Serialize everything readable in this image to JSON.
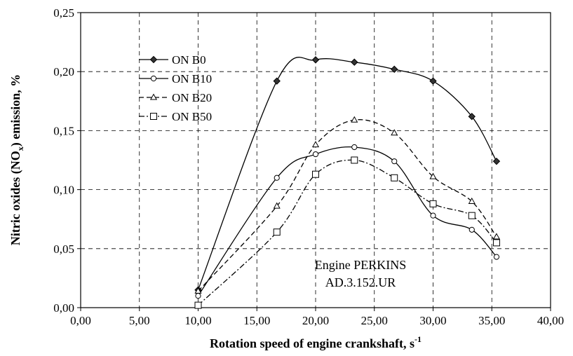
{
  "chart_data": {
    "type": "line",
    "title": "",
    "xlabel": "Rotation speed of engine crankshaft, s",
    "xlabel_sup": "-1",
    "ylabel_pre": "Nitric oxides (NO",
    "ylabel_sub": "x",
    "ylabel_post": ") emission, %",
    "xlim": [
      0,
      40
    ],
    "ylim": [
      0,
      0.25
    ],
    "xticks": [
      0,
      5,
      10,
      15,
      20,
      25,
      30,
      35,
      40
    ],
    "yticks": [
      0,
      0.05,
      0.1,
      0.15,
      0.2,
      0.25
    ],
    "xtick_labels": [
      "0,00",
      "5,00",
      "10,00",
      "15,00",
      "20,00",
      "25,00",
      "30,00",
      "35,00",
      "40,00"
    ],
    "ytick_labels": [
      "0,00",
      "0,05",
      "0,10",
      "0,15",
      "0,20",
      "0,25"
    ],
    "grid": true,
    "legend_position": "upper-left",
    "series": [
      {
        "name": "ON B0",
        "marker": "diamond",
        "dash": "solid",
        "x": [
          10,
          16.7,
          20,
          23.3,
          26.7,
          30,
          33.3,
          35.4
        ],
        "y": [
          0.015,
          0.192,
          0.21,
          0.208,
          0.202,
          0.192,
          0.162,
          0.124
        ]
      },
      {
        "name": "ON B10",
        "marker": "circle",
        "dash": "solid",
        "x": [
          10,
          16.7,
          20,
          23.3,
          26.7,
          30,
          33.3,
          35.4
        ],
        "y": [
          0.01,
          0.11,
          0.13,
          0.136,
          0.124,
          0.078,
          0.066,
          0.043
        ]
      },
      {
        "name": "ON B20",
        "marker": "triangle",
        "dash": "dash",
        "x": [
          10,
          16.7,
          20,
          23.3,
          26.7,
          30,
          33.3,
          35.4
        ],
        "y": [
          0.014,
          0.086,
          0.138,
          0.159,
          0.148,
          0.111,
          0.09,
          0.06
        ]
      },
      {
        "name": "ON B50",
        "marker": "square",
        "dash": "dashdot",
        "x": [
          10,
          16.7,
          20,
          23.3,
          26.7,
          30,
          33.3,
          35.4
        ],
        "y": [
          0.002,
          0.064,
          0.113,
          0.125,
          0.11,
          0.088,
          0.078,
          0.055
        ]
      }
    ],
    "annotations": [
      "Engine PERKINS",
      "AD.3.152.UR"
    ]
  }
}
